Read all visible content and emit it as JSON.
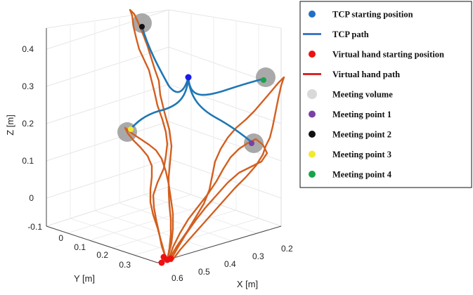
{
  "chart_data": {
    "type": "line-3d",
    "axes": {
      "x": {
        "label": "X [m]",
        "ticks": [
          "0.2",
          "0.3",
          "0.4",
          "0.5",
          "0.6"
        ]
      },
      "y": {
        "label": "Y [m]",
        "ticks": [
          "-0.1",
          "0",
          "0.1",
          "0.2",
          "0.3"
        ]
      },
      "z": {
        "label": "Z [m]",
        "ticks": [
          "0",
          "0.1",
          "0.2",
          "0.3",
          "0.4"
        ]
      }
    },
    "grid": true,
    "legend": {
      "placement": "right",
      "entries": [
        {
          "label": "TCP starting position",
          "kind": "marker",
          "color": "#1f6fc5"
        },
        {
          "label": "TCP path",
          "kind": "line",
          "color": "#3f78c4"
        },
        {
          "label": "Virtual hand starting position",
          "kind": "marker",
          "color": "#ee1111"
        },
        {
          "label": "Virtual hand path",
          "kind": "line",
          "color": "#d62828"
        },
        {
          "label": "Meeting volume",
          "kind": "marker",
          "color": "#d9d9d9"
        },
        {
          "label": "Meeting point 1",
          "kind": "marker",
          "color": "#7b3fa6"
        },
        {
          "label": "Meeting point 2",
          "kind": "marker",
          "color": "#111111"
        },
        {
          "label": "Meeting point 3",
          "kind": "marker",
          "color": "#f2ea2a"
        },
        {
          "label": "Meeting point 4",
          "kind": "marker",
          "color": "#1aa34a"
        }
      ]
    },
    "series_colors": {
      "tcp_path": "#1f77b4",
      "hand_path": "#d35f1f",
      "tcp_start": "#1a1aee",
      "hand_start": "#ee1111",
      "meeting_volume": "#9a9a9a"
    }
  }
}
